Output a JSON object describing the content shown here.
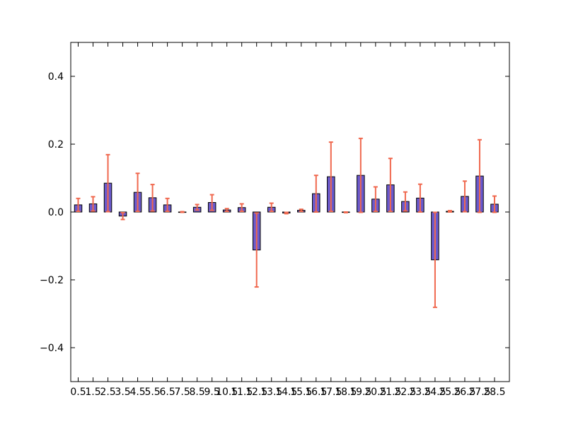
{
  "chart_data": {
    "type": "bar",
    "title": "",
    "xlabel": "",
    "ylabel": "",
    "x_ticks": [
      "0.5",
      "1.5",
      "2.5",
      "3.5",
      "4.5",
      "5.5",
      "6.5",
      "7.5",
      "8.5",
      "9.5",
      "10.5",
      "11.5",
      "12.5",
      "13.5",
      "14.5",
      "15.5",
      "16.5",
      "17.5",
      "18.5",
      "19.5",
      "20.5",
      "21.5",
      "22.5",
      "23.5",
      "24.5",
      "25.5",
      "26.5",
      "27.5",
      "28.5"
    ],
    "xlim": [
      0,
      29.5
    ],
    "ylim": [
      -0.5,
      0.5
    ],
    "y_ticks": [
      -0.4,
      -0.2,
      0.0,
      0.2,
      0.4
    ],
    "grid": false,
    "bar_width": 0.5,
    "bar_color": "#6a5acd",
    "bar_edge_color": "#000000",
    "error_color": "#f0684e",
    "x": [
      0.5,
      1.5,
      2.5,
      3.5,
      4.5,
      5.5,
      6.5,
      7.5,
      8.5,
      9.5,
      10.5,
      11.5,
      12.5,
      13.5,
      14.5,
      15.5,
      16.5,
      17.5,
      18.5,
      19.5,
      20.5,
      21.5,
      22.5,
      23.5,
      24.5,
      25.5,
      26.5,
      27.5,
      28.5
    ],
    "values": [
      0.021,
      0.024,
      0.085,
      -0.012,
      0.058,
      0.042,
      0.021,
      0.0,
      0.014,
      0.028,
      0.006,
      0.013,
      -0.112,
      0.014,
      -0.003,
      0.005,
      0.054,
      0.104,
      -0.001,
      0.108,
      0.038,
      0.08,
      0.031,
      0.041,
      -0.141,
      0.002,
      0.046,
      0.106,
      0.023
    ],
    "errors": [
      0.019,
      0.021,
      0.084,
      0.01,
      0.056,
      0.039,
      0.019,
      0.001,
      0.008,
      0.023,
      0.004,
      0.011,
      0.109,
      0.012,
      0.002,
      0.003,
      0.054,
      0.102,
      0.001,
      0.109,
      0.036,
      0.078,
      0.028,
      0.041,
      0.14,
      0.002,
      0.045,
      0.107,
      0.024
    ]
  }
}
